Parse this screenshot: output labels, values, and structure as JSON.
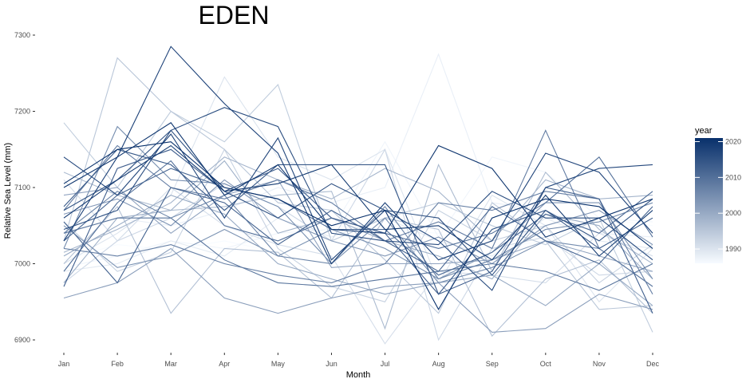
{
  "chart_data": {
    "type": "line",
    "title": "EDEN",
    "xlabel": "Month",
    "ylabel": "Relative Sea Level (mm)",
    "categories": [
      "Jan",
      "Feb",
      "Mar",
      "Apr",
      "May",
      "Jun",
      "Jul",
      "Aug",
      "Sep",
      "Oct",
      "Nov",
      "Dec"
    ],
    "ylim": [
      6885,
      7310
    ],
    "yticks": [
      6900,
      7000,
      7100,
      7200,
      7300
    ],
    "grid": false,
    "legend": {
      "title": "year",
      "position": "right",
      "type": "colorbar",
      "range": [
        1986,
        2021
      ],
      "ticks": [
        1990,
        2000,
        2010,
        2020
      ],
      "color_low": "#f7fbff",
      "color_high": "#08306b"
    },
    "series": [
      {
        "year": 1986,
        "values": [
          7005,
          7025,
          7018,
          7030,
          7015,
          7050,
          7045,
          7040,
          7020,
          7030,
          7060,
          7050
        ]
      },
      {
        "year": 1987,
        "values": [
          6995,
          7010,
          7030,
          7020,
          7040,
          7045,
          7160,
          7035,
          7140,
          7120,
          7060,
          7055
        ]
      },
      {
        "year": 1988,
        "values": [
          7040,
          7060,
          7050,
          7070,
          7100,
          7080,
          7100,
          7275,
          7080,
          7070,
          7040,
          7035
        ]
      },
      {
        "year": 1989,
        "values": [
          6990,
          7000,
          7030,
          7010,
          7060,
          7035,
          7060,
          7030,
          7010,
          7060,
          7030,
          7020
        ]
      },
      {
        "year": 1990,
        "values": [
          7000,
          7040,
          7090,
          7245,
          7140,
          7110,
          7150,
          6975,
          7090,
          7050,
          6950,
          7020
        ]
      },
      {
        "year": 1991,
        "values": [
          7110,
          7030,
          7100,
          7050,
          7025,
          7010,
          6895,
          6990,
          6985,
          6975,
          7040,
          7010
        ]
      },
      {
        "year": 1992,
        "values": [
          6975,
          7030,
          7060,
          7105,
          7075,
          7030,
          7150,
          6900,
          7020,
          7035,
          6985,
          6990
        ]
      },
      {
        "year": 1993,
        "values": [
          7055,
          6990,
          7015,
          7150,
          7020,
          6970,
          6950,
          7070,
          7030,
          7050,
          6975,
          7025
        ]
      },
      {
        "year": 1994,
        "values": [
          7185,
          7100,
          7200,
          7160,
          7235,
          7030,
          7060,
          7080,
          7050,
          7025,
          7060,
          6910
        ]
      },
      {
        "year": 1995,
        "values": [
          7030,
          7270,
          7200,
          7150,
          7080,
          7070,
          7005,
          6935,
          7080,
          7030,
          6940,
          6945
        ]
      },
      {
        "year": 1996,
        "values": [
          7000,
          7075,
          6935,
          7020,
          7015,
          6955,
          7060,
          7045,
          6905,
          6980,
          7005,
          6935
        ]
      },
      {
        "year": 1997,
        "values": [
          7120,
          7090,
          7070,
          7075,
          7090,
          7095,
          6915,
          7130,
          6990,
          7120,
          7045,
          7000
        ]
      },
      {
        "year": 1998,
        "values": [
          7015,
          7045,
          7080,
          7140,
          7110,
          7085,
          7125,
          7095,
          7030,
          7110,
          7085,
          7090
        ]
      },
      {
        "year": 1999,
        "values": [
          6975,
          7060,
          7070,
          7135,
          7040,
          7060,
          7030,
          7010,
          6980,
          7065,
          7050,
          6980
        ]
      },
      {
        "year": 2000,
        "values": [
          7010,
          7050,
          7090,
          7065,
          7000,
          6980,
          6960,
          6975,
          6985,
          6945,
          7000,
          6945
        ]
      },
      {
        "year": 2001,
        "values": [
          7090,
          7100,
          7040,
          7090,
          7110,
          6995,
          7000,
          7000,
          7005,
          7030,
          7010,
          6990
        ]
      },
      {
        "year": 2002,
        "values": [
          6955,
          6975,
          7020,
          6955,
          6935,
          6955,
          6970,
          6975,
          6910,
          6915,
          6960,
          6940
        ]
      },
      {
        "year": 2003,
        "values": [
          7065,
          7085,
          7050,
          7110,
          7060,
          7030,
          7010,
          7035,
          7000,
          7050,
          7070,
          7025
        ]
      },
      {
        "year": 2004,
        "values": [
          7050,
          6995,
          7010,
          7045,
          7010,
          7045,
          7020,
          6980,
          7015,
          7080,
          7080,
          6980
        ]
      },
      {
        "year": 2005,
        "values": [
          7020,
          7180,
          7110,
          7105,
          7075,
          7000,
          7060,
          6975,
          6995,
          7030,
          7020,
          6970
        ]
      },
      {
        "year": 2006,
        "values": [
          7040,
          7095,
          7060,
          7090,
          7010,
          7000,
          7075,
          6980,
          7005,
          7045,
          7055,
          7080
        ]
      },
      {
        "year": 2007,
        "values": [
          7020,
          7010,
          7025,
          7000,
          6985,
          6975,
          7000,
          7080,
          7070,
          7095,
          7085,
          6960
        ]
      },
      {
        "year": 2008,
        "values": [
          7070,
          7155,
          7100,
          7085,
          7110,
          7080,
          7030,
          7055,
          7020,
          7175,
          7020,
          6970
        ]
      },
      {
        "year": 2009,
        "values": [
          7040,
          7060,
          7060,
          7005,
          6975,
          6970,
          6980,
          6990,
          7000,
          6990,
          6965,
          7000
        ]
      },
      {
        "year": 2010,
        "values": [
          6990,
          7080,
          7135,
          7050,
          7030,
          7060,
          7040,
          7020,
          7040,
          7080,
          7140,
          7035
        ]
      },
      {
        "year": 2011,
        "values": [
          7030,
          7090,
          7125,
          7100,
          7085,
          7045,
          7045,
          6985,
          7015,
          7065,
          7040,
          7095
        ]
      },
      {
        "year": 2012,
        "values": [
          7055,
          6975,
          7100,
          7080,
          7025,
          7070,
          7030,
          6990,
          7075,
          7030,
          7000,
          7075
        ]
      },
      {
        "year": 2013,
        "values": [
          6970,
          7125,
          7150,
          7095,
          7125,
          7060,
          7040,
          6960,
          6990,
          7100,
          7085,
          6935
        ]
      },
      {
        "year": 2014,
        "values": [
          7075,
          7150,
          7130,
          7070,
          7130,
          7130,
          7130,
          6960,
          7045,
          7070,
          7020,
          7060
        ]
      },
      {
        "year": 2015,
        "values": [
          7070,
          7110,
          7175,
          7095,
          7060,
          7105,
          7070,
          7060,
          6985,
          7070,
          7030,
          7085
        ]
      },
      {
        "year": 2016,
        "values": [
          7045,
          7070,
          7175,
          7205,
          7180,
          7040,
          7030,
          7025,
          7095,
          7060,
          7060,
          7005
        ]
      },
      {
        "year": 2017,
        "values": [
          7140,
          7090,
          7170,
          7060,
          7165,
          7005,
          7070,
          7030,
          6965,
          7100,
          7125,
          7130
        ]
      },
      {
        "year": 2018,
        "values": [
          7030,
          7140,
          7285,
          7210,
          7145,
          7000,
          7080,
          7005,
          7030,
          7145,
          7120,
          7040
        ]
      },
      {
        "year": 2019,
        "values": [
          7060,
          7110,
          7155,
          7095,
          7105,
          7130,
          7045,
          7050,
          7005,
          7090,
          7010,
          7070
        ]
      },
      {
        "year": 2020,
        "values": [
          7100,
          7140,
          7185,
          7090,
          7130,
          7045,
          7040,
          7155,
          7125,
          7035,
          7060,
          7085
        ]
      },
      {
        "year": 2021,
        "values": [
          7105,
          7150,
          7160,
          7100,
          7085,
          7050,
          7070,
          6940,
          7060,
          7085,
          7075,
          7020
        ]
      }
    ]
  }
}
